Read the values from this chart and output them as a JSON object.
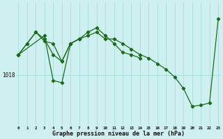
{
  "xlabel": "Graphe pression niveau de la mer (hPa)",
  "background_color": "#cff0f0",
  "line_color": "#1a6b1a",
  "hours": [
    0,
    1,
    2,
    3,
    4,
    5,
    6,
    7,
    8,
    9,
    10,
    11,
    12,
    13,
    14,
    15,
    16,
    17,
    18,
    19,
    20,
    21,
    22,
    23
  ],
  "series1": [
    1019.8,
    1020.8,
    1021.8,
    1021.2,
    1019.8,
    1019.2,
    1020.8,
    1021.2,
    1021.5,
    1021.8,
    1021.2,
    1021.2,
    1020.8,
    1020.3,
    1019.8,
    1019.5,
    1019.0,
    1018.5,
    1017.8,
    1016.8,
    1015.2,
    1015.3,
    1015.5,
    1023.0
  ],
  "series2": [
    1019.8,
    1020.8,
    1021.8,
    1021.0,
    1020.8,
    1019.2,
    1020.8,
    1021.2,
    1021.8,
    1022.2,
    1021.5,
    1020.8,
    1020.0,
    1019.8,
    1019.5,
    null,
    null,
    null,
    null,
    null,
    null,
    null,
    null,
    null
  ],
  "series3_x": [
    0,
    3,
    4,
    5,
    6,
    7
  ],
  "series3_y": [
    1019.8,
    1021.5,
    1017.5,
    1017.3,
    1020.8,
    1021.2
  ],
  "ytick_value": 1018,
  "ytick_label": "1018",
  "ylim": [
    1013.5,
    1024.5
  ],
  "xlim": [
    -0.3,
    23.3
  ]
}
